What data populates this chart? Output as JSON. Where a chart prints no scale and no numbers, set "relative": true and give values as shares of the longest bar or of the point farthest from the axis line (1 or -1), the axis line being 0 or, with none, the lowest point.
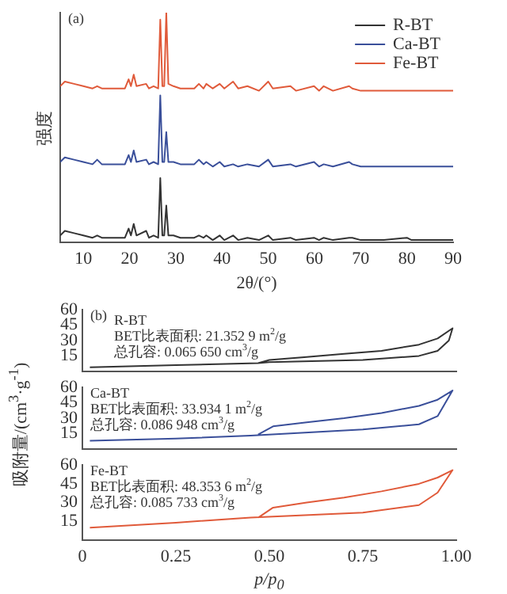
{
  "chart_data": [
    {
      "type": "line",
      "relative": true,
      "xlabel": "2θ/(°)",
      "ylabel": "强度",
      "legend": "top right",
      "annotations": [
        "(a)"
      ],
      "xlim": [
        5,
        90
      ],
      "xticks": [
        10,
        20,
        30,
        40,
        50,
        60,
        70,
        80,
        90
      ],
      "x": [
        5,
        6,
        8,
        10,
        12,
        13,
        14,
        16,
        19,
        19.8,
        20.3,
        20.9,
        21.5,
        23.6,
        24.2,
        25.2,
        26.2,
        26.65,
        27.1,
        27.5,
        27.95,
        28.4,
        29.5,
        31,
        34,
        35,
        36,
        36.6,
        38,
        39.5,
        40.5,
        42.4,
        43.5,
        45.5,
        48,
        50,
        51,
        54.8,
        56,
        59.9,
        61,
        62,
        64,
        67.5,
        68.2,
        70,
        75,
        80,
        81,
        85,
        90
      ],
      "series": [
        {
          "name": "R-BT",
          "color": "#333333",
          "values": [
            0.03,
            0.05,
            0.04,
            0.03,
            0.02,
            0.03,
            0.02,
            0.02,
            0.02,
            0.06,
            0.03,
            0.08,
            0.03,
            0.05,
            0.02,
            0.03,
            0.02,
            0.28,
            0.03,
            0.03,
            0.16,
            0.03,
            0.03,
            0.02,
            0.02,
            0.03,
            0.02,
            0.03,
            0.01,
            0.03,
            0.01,
            0.03,
            0.01,
            0.02,
            0.01,
            0.03,
            0.01,
            0.02,
            0.01,
            0.02,
            0.01,
            0.02,
            0.01,
            0.02,
            0.02,
            0.01,
            0.01,
            0.02,
            0.01,
            0.01,
            0.01
          ]
        },
        {
          "name": "Ca-BT",
          "color": "#3a4f9a",
          "values": [
            0.35,
            0.37,
            0.36,
            0.35,
            0.34,
            0.36,
            0.34,
            0.34,
            0.34,
            0.38,
            0.35,
            0.4,
            0.35,
            0.36,
            0.34,
            0.35,
            0.34,
            0.64,
            0.35,
            0.35,
            0.48,
            0.35,
            0.35,
            0.34,
            0.34,
            0.36,
            0.34,
            0.35,
            0.33,
            0.35,
            0.33,
            0.34,
            0.33,
            0.34,
            0.33,
            0.36,
            0.33,
            0.34,
            0.33,
            0.35,
            0.33,
            0.34,
            0.33,
            0.35,
            0.34,
            0.33,
            0.33,
            0.33,
            0.33,
            0.33,
            0.33
          ]
        },
        {
          "name": "Fe-BT",
          "color": "#e05a3a",
          "values": [
            0.68,
            0.7,
            0.69,
            0.68,
            0.67,
            0.68,
            0.67,
            0.67,
            0.67,
            0.71,
            0.68,
            0.73,
            0.68,
            0.69,
            0.67,
            0.68,
            0.67,
            0.97,
            0.68,
            0.68,
            1.0,
            0.69,
            0.68,
            0.67,
            0.67,
            0.69,
            0.67,
            0.69,
            0.67,
            0.69,
            0.67,
            0.7,
            0.67,
            0.68,
            0.66,
            0.7,
            0.67,
            0.68,
            0.66,
            0.68,
            0.66,
            0.68,
            0.66,
            0.68,
            0.67,
            0.66,
            0.66,
            0.66,
            0.66,
            0.66,
            0.66
          ]
        }
      ]
    },
    {
      "type": "line",
      "tick_labels": "y",
      "annotations": [
        "(b)",
        "R-BT",
        "BET比表面积: 21.352 9 m$^{2}$/g",
        "总孔容: 0.065 650 cm$^{3}$/g"
      ],
      "xlim": [
        0,
        1
      ],
      "ylim": [
        0,
        60
      ],
      "yticks": [
        15,
        30,
        45,
        60
      ],
      "series": [
        {
          "color": "#333333",
          "x": [
            0.02,
            0.25,
            0.47,
            0.5,
            0.75,
            0.9,
            0.95,
            0.98,
            0.99,
            0.95,
            0.9,
            0.8,
            0.7,
            0.6,
            0.5,
            0.47
          ],
          "values": [
            4,
            6,
            8,
            9,
            11,
            15,
            20,
            30,
            42,
            32,
            26,
            20,
            17,
            14,
            11,
            8
          ]
        }
      ]
    },
    {
      "type": "line",
      "tick_labels": "y",
      "ylabel": "吸附量/(cm$^{3}$·g$^{-1}$)",
      "annotations": [
        "Ca-BT",
        "BET比表面积: 33.934 1 m$^{2}$/g",
        "总孔容: 0.086 948 cm$^{3}$/g"
      ],
      "xlim": [
        0,
        1
      ],
      "ylim": [
        0,
        60
      ],
      "yticks": [
        15,
        30,
        45,
        60
      ],
      "series": [
        {
          "color": "#3a4f9a",
          "x": [
            0.02,
            0.25,
            0.45,
            0.75,
            0.9,
            0.95,
            0.99,
            0.95,
            0.9,
            0.8,
            0.7,
            0.6,
            0.51,
            0.47
          ],
          "values": [
            8,
            10,
            13,
            19,
            24,
            32,
            57,
            48,
            42,
            35,
            30,
            26,
            22,
            14
          ]
        }
      ]
    },
    {
      "type": "line",
      "xlabel": "p/p$_{0}$",
      "annotations": [
        "Fe-BT",
        "BET比表面积: 48.353 6 m$^{2}$/g",
        "总孔容: 0.085 733 cm$^{3}$/g"
      ],
      "xlim": [
        0,
        1
      ],
      "xticks": [
        0,
        0.25,
        {
          "value": 0.5,
          "label": "0.50"
        },
        0.75,
        {
          "value": 1,
          "label": "1.00"
        }
      ],
      "ylim": [
        0,
        60
      ],
      "yticks": [
        15,
        30,
        45,
        60
      ],
      "series": [
        {
          "color": "#e05a3a",
          "x": [
            0.02,
            0.25,
            0.45,
            0.75,
            0.9,
            0.95,
            0.99,
            0.95,
            0.9,
            0.8,
            0.7,
            0.6,
            0.51,
            0.47
          ],
          "values": [
            10,
            14,
            18,
            22,
            28,
            38,
            56,
            50,
            45,
            39,
            34,
            30,
            26,
            18
          ]
        }
      ]
    }
  ]
}
